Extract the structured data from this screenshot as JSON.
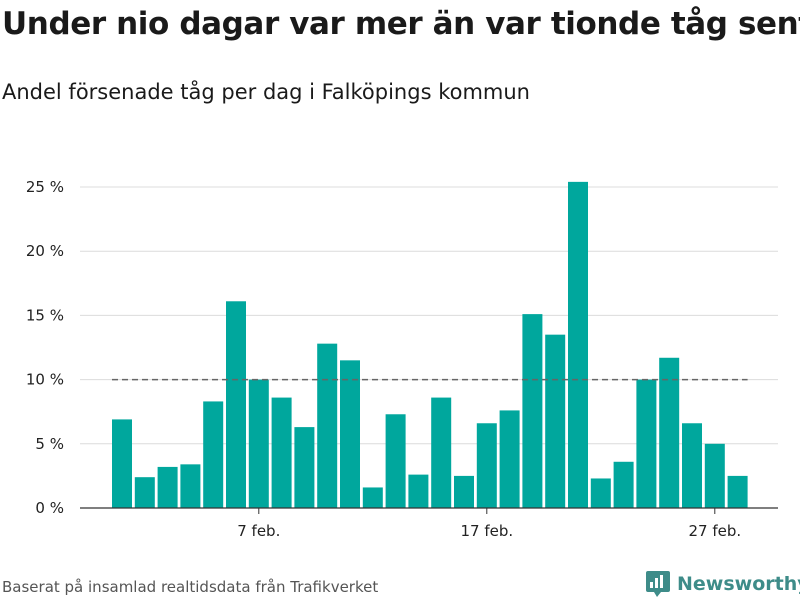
{
  "chart_data": {
    "type": "bar",
    "title": "Under nio dagar var mer än var tionde tåg sent",
    "subtitle": "Andel försenade tåg per dag i Falköpings kommun",
    "x_start_day": 1,
    "values": [
      6.9,
      2.4,
      3.2,
      3.4,
      8.3,
      16.1,
      10.0,
      8.6,
      6.3,
      12.8,
      11.5,
      1.6,
      7.3,
      2.6,
      8.6,
      2.5,
      6.6,
      7.6,
      15.1,
      13.5,
      25.4,
      2.3,
      3.6,
      10.0,
      11.7,
      6.6,
      5.0,
      2.5
    ],
    "x_ticks": [
      {
        "label": "7 feb.",
        "day": 7
      },
      {
        "label": "17 feb.",
        "day": 17
      },
      {
        "label": "27 feb.",
        "day": 27
      }
    ],
    "y_ticks": [
      {
        "label": "0 %",
        "value": 0
      },
      {
        "label": "5 %",
        "value": 5
      },
      {
        "label": "10 %",
        "value": 10
      },
      {
        "label": "15 %",
        "value": 15
      },
      {
        "label": "20 %",
        "value": 20
      },
      {
        "label": "25 %",
        "value": 25
      }
    ],
    "ylim": [
      0,
      25
    ],
    "reference_line": 10,
    "bar_color": "#00a79d",
    "reference_color": "#666666",
    "grid": true,
    "source": "Baserat på insamlad realtidsdata från Trafikverket",
    "brand": "Newsworthy"
  }
}
